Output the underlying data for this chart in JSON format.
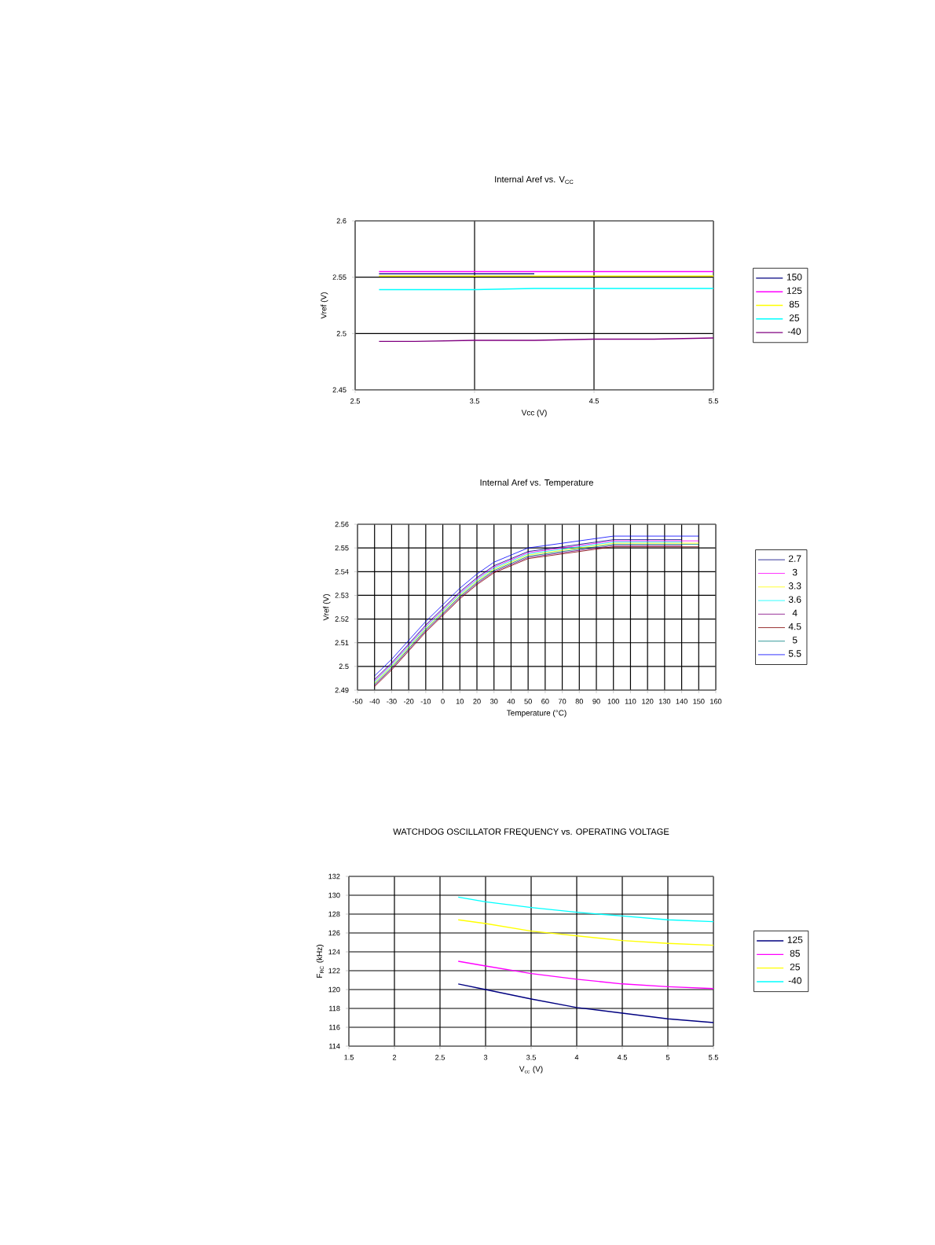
{
  "chart_data": [
    {
      "type": "line",
      "title": "Internal Aref vs. V$_{CC}$",
      "xlabel": "Vcc (V)",
      "ylabel": "Vref (V)",
      "x": [
        2.7,
        3,
        3.5,
        4,
        4.5,
        5,
        5.5
      ],
      "series": [
        {
          "name": "150",
          "color": "#000080",
          "values": [
            2.553,
            2.553,
            2.553,
            2.553,
            null,
            null,
            null
          ]
        },
        {
          "name": "125",
          "color": "#ff00ff",
          "values": [
            2.555,
            2.555,
            2.555,
            2.555,
            2.555,
            2.555,
            2.555
          ]
        },
        {
          "name": "85",
          "color": "#ffff00",
          "values": [
            2.551,
            2.551,
            2.551,
            2.551,
            2.551,
            2.551,
            2.551
          ]
        },
        {
          "name": "25",
          "color": "#00ffff",
          "values": [
            2.539,
            2.539,
            2.539,
            2.54,
            2.54,
            2.54,
            2.54
          ]
        },
        {
          "name": "-40",
          "color": "#800080",
          "values": [
            2.493,
            2.493,
            2.494,
            2.494,
            2.495,
            2.495,
            2.496
          ]
        }
      ],
      "xlim": [
        2.5,
        5.5
      ],
      "xticks": [
        2.5,
        3.5,
        4.5,
        5.5
      ],
      "ylim": [
        2.45,
        2.6
      ],
      "yticks": [
        2.45,
        2.5,
        2.55,
        2.6
      ],
      "grid": true,
      "legend": "right"
    },
    {
      "type": "line",
      "title": "Internal Aref vs. Temperature",
      "xlabel": "Temperature (°C)",
      "ylabel": "Vref (V)",
      "x": [
        -40,
        -30,
        -20,
        -10,
        0,
        10,
        20,
        30,
        40,
        50,
        60,
        70,
        80,
        90,
        100,
        110,
        120,
        130,
        140,
        150
      ],
      "series": [
        {
          "name": "2.7",
          "color": "#000080",
          "values": [
            2.4945,
            2.5015,
            2.5095,
            2.5175,
            2.5245,
            2.5315,
            2.5375,
            2.5425,
            2.5455,
            2.5485,
            2.5495,
            2.5505,
            2.5515,
            2.5525,
            2.5535,
            2.5535,
            2.5535,
            2.5535,
            2.5535,
            null
          ]
        },
        {
          "name": "3",
          "color": "#ff00ff",
          "values": [
            2.494,
            2.501,
            2.509,
            2.517,
            2.524,
            2.531,
            2.537,
            2.542,
            2.545,
            2.548,
            2.549,
            2.55,
            2.551,
            2.552,
            2.553,
            2.553,
            2.553,
            2.553,
            2.553,
            2.553
          ]
        },
        {
          "name": "3.3",
          "color": "#ffff00",
          "values": [
            2.493,
            2.5,
            2.508,
            2.516,
            2.523,
            2.53,
            2.536,
            2.541,
            2.544,
            2.547,
            2.548,
            2.549,
            2.55,
            2.551,
            2.552,
            2.552,
            2.552,
            2.552,
            2.552,
            2.552
          ]
        },
        {
          "name": "3.6",
          "color": "#00ffff",
          "values": [
            2.4935,
            2.5005,
            2.5085,
            2.5165,
            2.5235,
            2.5305,
            2.5365,
            2.5415,
            2.5445,
            2.5475,
            2.5485,
            2.5495,
            2.5505,
            2.5515,
            2.5525,
            2.5525,
            2.5525,
            2.5525,
            2.5525,
            null
          ]
        },
        {
          "name": "4",
          "color": "#800080",
          "values": [
            2.492,
            2.499,
            2.507,
            2.515,
            2.522,
            2.529,
            2.535,
            2.54,
            2.543,
            2.546,
            2.547,
            2.548,
            2.549,
            2.55,
            2.551,
            2.551,
            2.551,
            2.551,
            2.551,
            null
          ]
        },
        {
          "name": "4.5",
          "color": "#800000",
          "values": [
            2.4915,
            2.4985,
            2.5065,
            2.5145,
            2.5215,
            2.5285,
            2.5345,
            2.5395,
            2.5425,
            2.5455,
            2.5465,
            2.5475,
            2.5485,
            2.5495,
            2.5505,
            2.5505,
            2.5505,
            2.5505,
            2.5505,
            2.5505
          ]
        },
        {
          "name": "5",
          "color": "#008080",
          "values": [
            2.4925,
            2.4995,
            2.5075,
            2.5155,
            2.5225,
            2.5295,
            2.5355,
            2.5405,
            2.5435,
            2.5465,
            2.5475,
            2.5485,
            2.5495,
            2.5505,
            2.5515,
            2.5515,
            2.5515,
            2.5515,
            2.5515,
            2.5515
          ]
        },
        {
          "name": "5.5",
          "color": "#0000ff",
          "values": [
            2.496,
            2.503,
            2.511,
            2.519,
            2.526,
            2.533,
            2.539,
            2.544,
            2.547,
            2.55,
            2.551,
            2.552,
            2.553,
            2.554,
            2.555,
            2.555,
            2.555,
            2.555,
            2.555,
            2.555
          ]
        }
      ],
      "xlim": [
        -50,
        160
      ],
      "xticks": [
        -50,
        -40,
        -30,
        -20,
        -10,
        0,
        10,
        20,
        30,
        40,
        50,
        60,
        70,
        80,
        90,
        100,
        110,
        120,
        130,
        140,
        150,
        160
      ],
      "ylim": [
        2.49,
        2.56
      ],
      "yticks": [
        2.49,
        2.5,
        2.51,
        2.52,
        2.53,
        2.54,
        2.55,
        2.56
      ],
      "grid": true,
      "legend": "right"
    },
    {
      "type": "line",
      "title": "WATCHDOG OSCILLATOR FREQUENCY vs. OPERATING VOLTAGE",
      "xlabel": "V$_{cc}$ (V)",
      "ylabel": "F$_{RC}$ (kHz)",
      "x": [
        2.7,
        3,
        3.5,
        4,
        4.5,
        5,
        5.5
      ],
      "series": [
        {
          "name": "125",
          "color": "#000080",
          "values": [
            120.6,
            120.0,
            119.0,
            118.1,
            117.5,
            116.9,
            116.5
          ]
        },
        {
          "name": "85",
          "color": "#ff00ff",
          "values": [
            123.0,
            122.5,
            121.7,
            121.1,
            120.6,
            120.3,
            120.1
          ]
        },
        {
          "name": "25",
          "color": "#ffff00",
          "values": [
            127.4,
            127.0,
            126.2,
            125.7,
            125.2,
            124.9,
            124.7
          ]
        },
        {
          "name": "-40",
          "color": "#00ffff",
          "values": [
            129.8,
            129.3,
            128.7,
            128.2,
            127.8,
            127.4,
            127.2
          ]
        }
      ],
      "xlim": [
        1.5,
        5.5
      ],
      "xticks": [
        1.5,
        2,
        2.5,
        3,
        3.5,
        4,
        4.5,
        5,
        5.5
      ],
      "ylim": [
        114,
        132
      ],
      "yticks": [
        114,
        116,
        118,
        120,
        122,
        124,
        126,
        128,
        130,
        132
      ],
      "grid": true,
      "legend": "right"
    }
  ]
}
